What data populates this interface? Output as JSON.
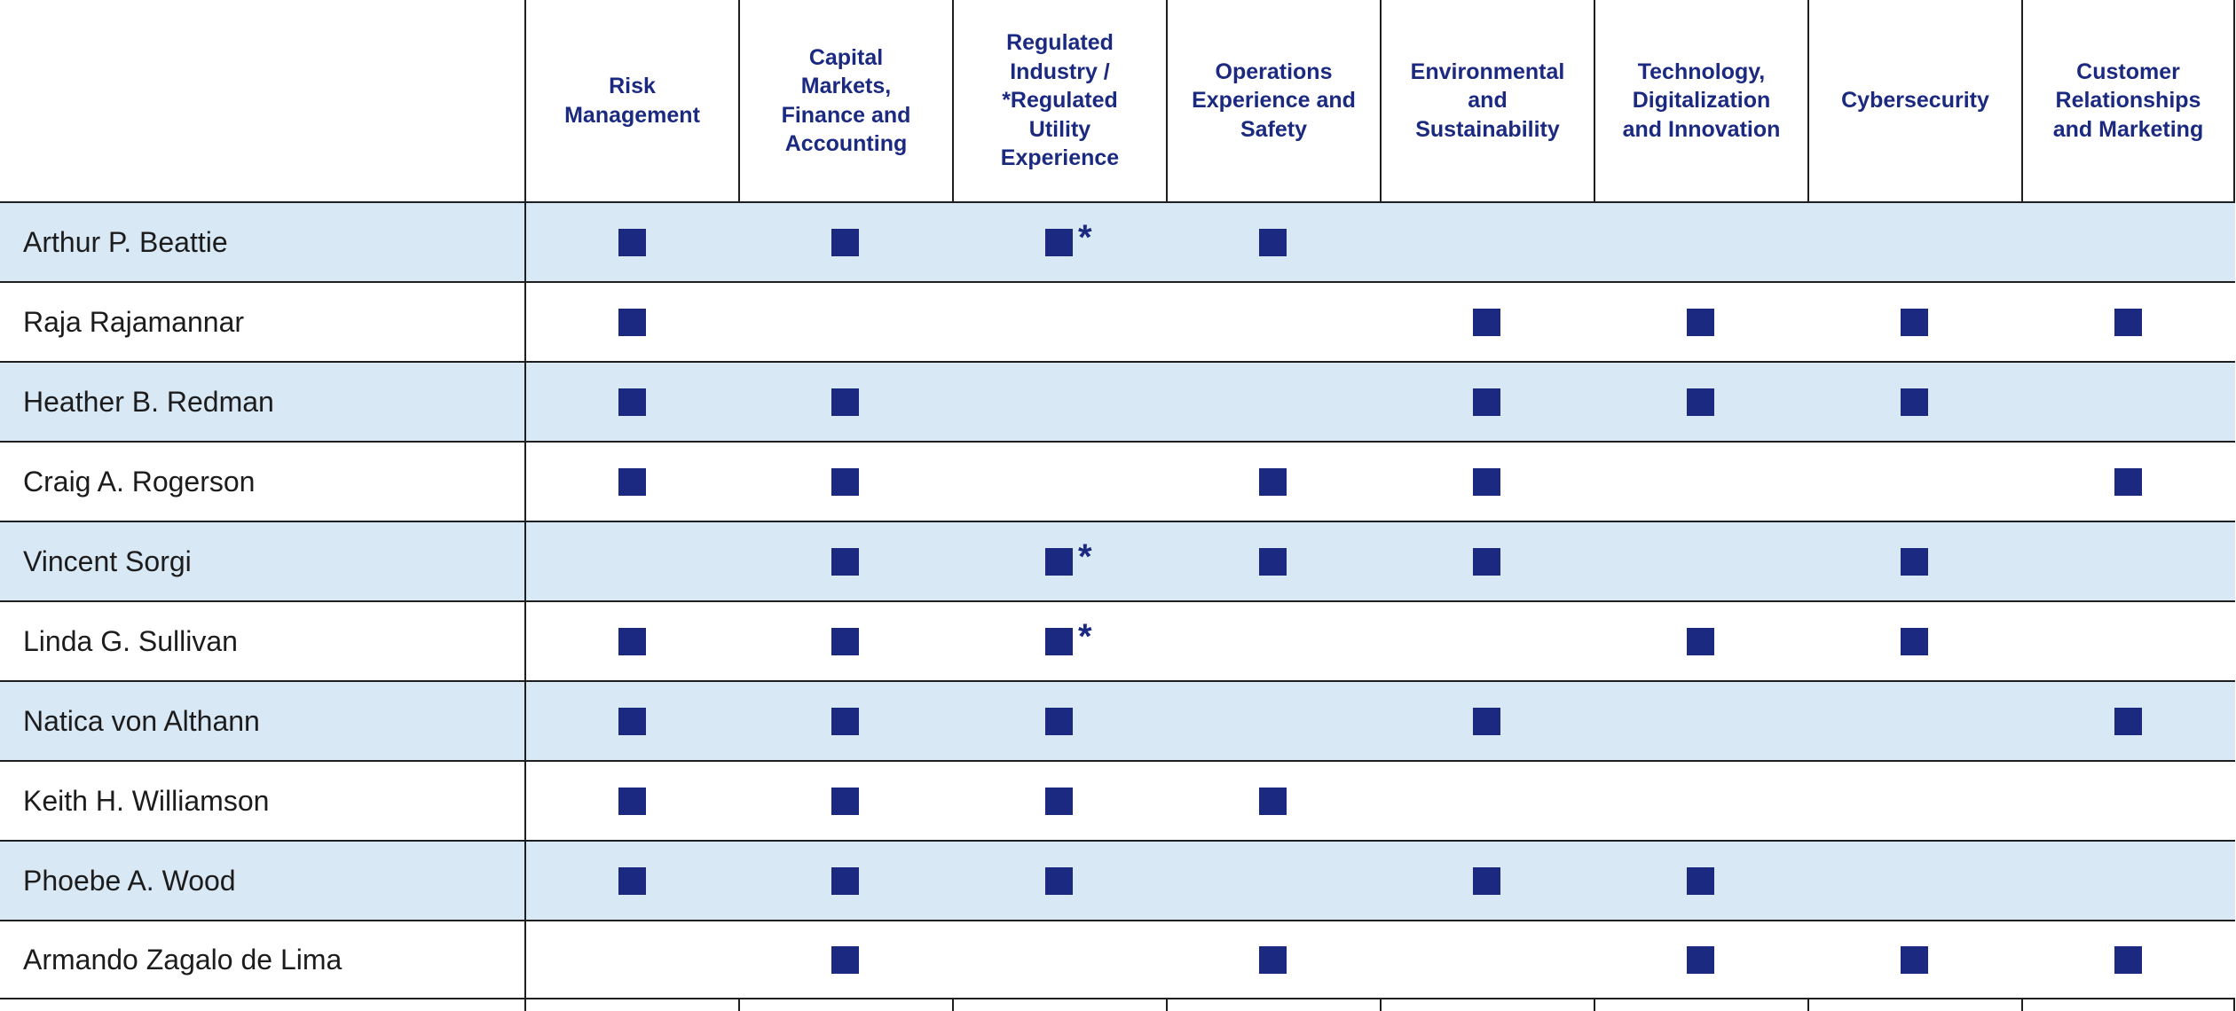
{
  "colors": {
    "navy": "#1b2a80",
    "row_highlight": "#d9e8f5",
    "row_plain": "#ffffff",
    "grid_line": "#1f1f1f"
  },
  "chart_data": {
    "type": "table",
    "description_of_marks": "filled navy square = director has the skill; 2 = square followed by an asterisk (regulated utility experience); 0 = blank cell",
    "asterisk_symbol": "*",
    "columns": [
      {
        "label": "Risk Management",
        "display": "Risk\nManagement"
      },
      {
        "label": "Capital Markets, Finance and Accounting",
        "display": "Capital\nMarkets,\nFinance and\nAccounting"
      },
      {
        "label": "Regulated Industry / *Regulated Utility Experience",
        "display": "Regulated\nIndustry /\n*Regulated\nUtility\nExperience"
      },
      {
        "label": "Operations Experience and Safety",
        "display": "Operations\nExperience and\nSafety"
      },
      {
        "label": "Environmental and Sustainability",
        "display": "Environmental\nand\nSustainability"
      },
      {
        "label": "Technology, Digitalization and Innovation",
        "display": "Technology,\nDigitalization\nand Innovation"
      },
      {
        "label": "Cybersecurity",
        "display": "Cybersecurity"
      },
      {
        "label": "Customer Relationships and Marketing",
        "display": "Customer\nRelationships\nand Marketing"
      }
    ],
    "rows": [
      {
        "name": "Arthur P. Beattie",
        "values": [
          1,
          1,
          2,
          1,
          0,
          0,
          0,
          0
        ]
      },
      {
        "name": "Raja Rajamannar",
        "values": [
          1,
          0,
          0,
          0,
          1,
          1,
          1,
          1
        ]
      },
      {
        "name": "Heather B. Redman",
        "values": [
          1,
          1,
          0,
          0,
          1,
          1,
          1,
          0
        ]
      },
      {
        "name": "Craig A. Rogerson",
        "values": [
          1,
          1,
          0,
          1,
          1,
          0,
          0,
          1
        ]
      },
      {
        "name": "Vincent Sorgi",
        "values": [
          0,
          1,
          2,
          1,
          1,
          0,
          1,
          0
        ]
      },
      {
        "name": "Linda G. Sullivan",
        "values": [
          1,
          1,
          2,
          0,
          0,
          1,
          1,
          0
        ]
      },
      {
        "name": "Natica von Althann",
        "values": [
          1,
          1,
          1,
          0,
          1,
          0,
          0,
          1
        ]
      },
      {
        "name": "Keith H. Williamson",
        "values": [
          1,
          1,
          1,
          1,
          0,
          0,
          0,
          0
        ]
      },
      {
        "name": "Phoebe A. Wood",
        "values": [
          1,
          1,
          1,
          0,
          1,
          1,
          0,
          0
        ]
      },
      {
        "name": "Armando Zagalo de Lima",
        "values": [
          0,
          1,
          0,
          1,
          0,
          1,
          1,
          1
        ]
      }
    ]
  }
}
